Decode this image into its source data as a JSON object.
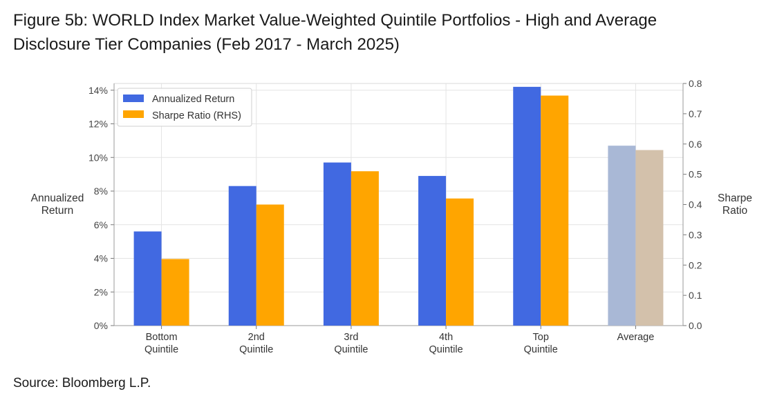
{
  "title_line1": "Figure 5b: WORLD Index Market Value-Weighted Quintile Portfolios - High and Average",
  "title_line2": "Disclosure Tier Companies (Feb 2017 - March 2025)",
  "source": "Source: Bloomberg L.P.",
  "chart_data": {
    "type": "bar",
    "categories": [
      [
        "Bottom",
        "Quintile"
      ],
      [
        "2nd",
        "Quintile"
      ],
      [
        "3rd",
        "Quintile"
      ],
      [
        "4th",
        "Quintile"
      ],
      [
        "Top",
        "Quintile"
      ],
      [
        "Average"
      ]
    ],
    "series": [
      {
        "name": "Annualized Return",
        "axis": "left",
        "values": [
          5.6,
          8.3,
          9.7,
          8.9,
          14.2,
          10.7
        ],
        "color": "#4169E1",
        "highlight_colors": [
          "#4169E1",
          "#4169E1",
          "#4169E1",
          "#4169E1",
          "#4169E1",
          "#A9B8D6"
        ]
      },
      {
        "name": "Sharpe Ratio (RHS)",
        "axis": "right",
        "values": [
          0.22,
          0.4,
          0.51,
          0.42,
          0.76,
          0.58
        ],
        "color": "#FFA500",
        "highlight_colors": [
          "#FFA500",
          "#FFA500",
          "#FFA500",
          "#FFA500",
          "#FFA500",
          "#D3C1AB"
        ]
      }
    ],
    "ylabel_left": [
      "Annualized",
      "Return"
    ],
    "ylabel_right": [
      "Sharpe",
      "Ratio"
    ],
    "ylim_left": [
      0,
      14.4
    ],
    "ylim_right": [
      0,
      0.8
    ],
    "yticks_left": [
      "0%",
      "2%",
      "4%",
      "6%",
      "8%",
      "10%",
      "12%",
      "14%"
    ],
    "yticks_left_values": [
      0,
      2,
      4,
      6,
      8,
      10,
      12,
      14
    ],
    "yticks_right": [
      "0.0",
      "0.1",
      "0.2",
      "0.3",
      "0.4",
      "0.5",
      "0.6",
      "0.7",
      "0.8"
    ],
    "yticks_right_values": [
      0,
      0.1,
      0.2,
      0.3,
      0.4,
      0.5,
      0.6,
      0.7,
      0.8
    ],
    "grid": true,
    "legend": "top-left"
  }
}
